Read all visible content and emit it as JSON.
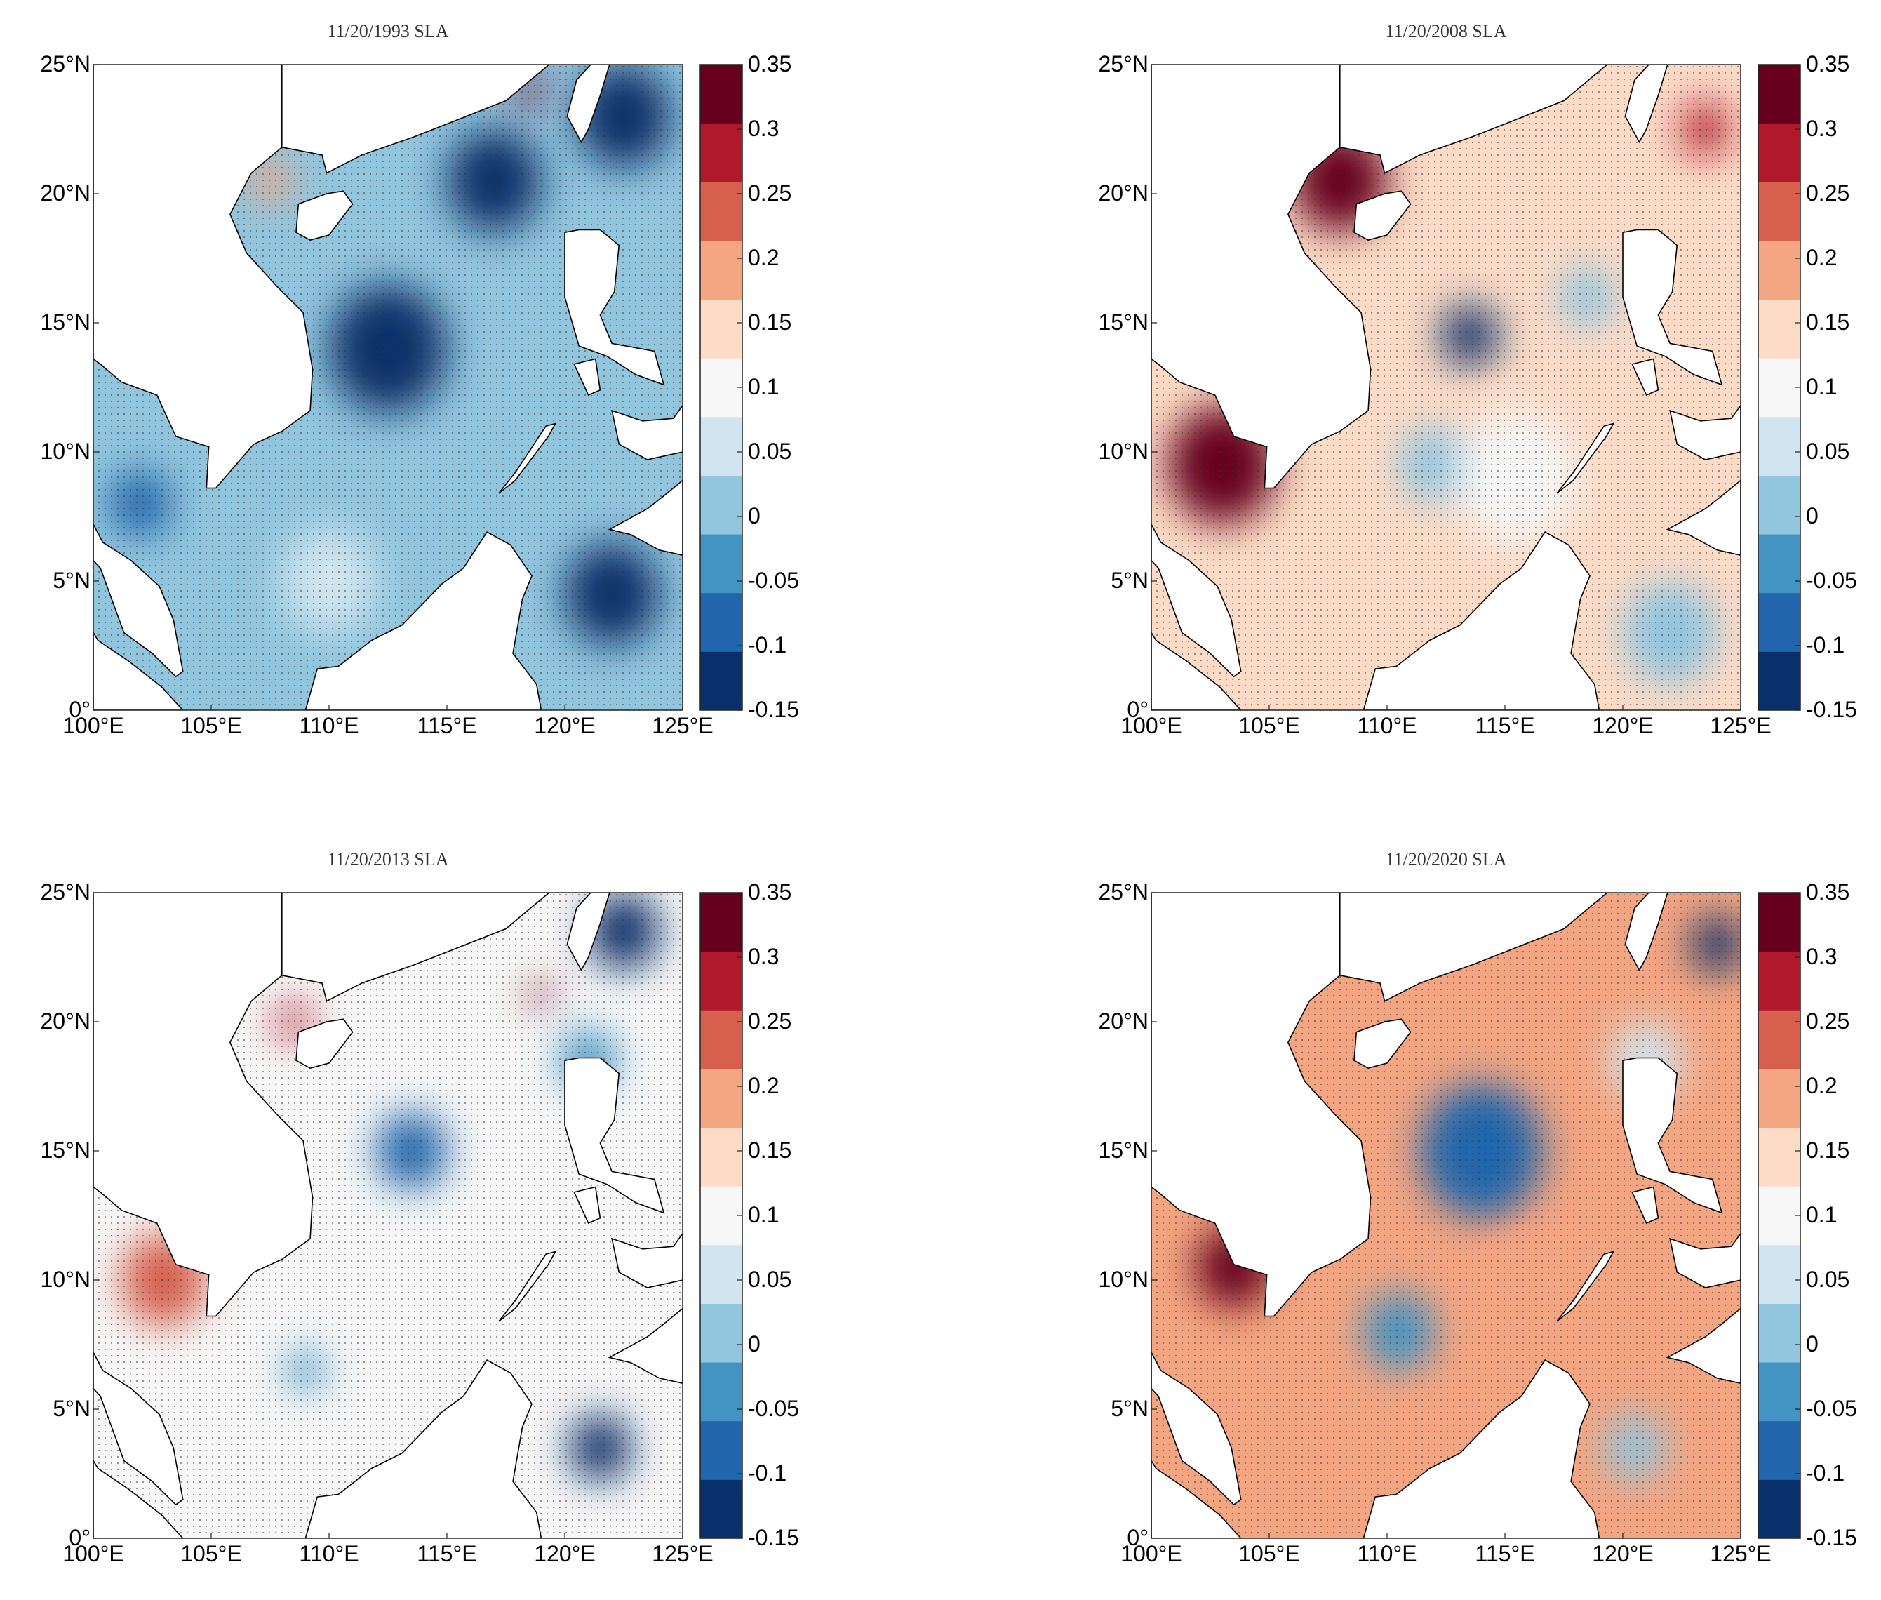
{
  "figure": {
    "colorbar": {
      "ticks": [
        "0.35",
        "0.3",
        "0.25",
        "0.2",
        "0.15",
        "0.1",
        "0.05",
        "0",
        "-0.05",
        "-0.1",
        "-0.15"
      ],
      "range": [
        -0.15,
        0.35
      ],
      "colors": [
        "#08306b",
        "#2166ac",
        "#4393c3",
        "#92c5de",
        "#d1e5f0",
        "#f7f7f7",
        "#fddbc7",
        "#f4a582",
        "#d6604d",
        "#b2182b",
        "#67001f"
      ]
    },
    "x_ticks": [
      "100°E",
      "105°E",
      "110°E",
      "115°E",
      "120°E",
      "125°E"
    ],
    "y_ticks": [
      "25°N",
      "20°N",
      "15°N",
      "10°N",
      "5°N",
      "0°"
    ],
    "land_color": "#ffffff",
    "coast_color": "#000000"
  },
  "panels": [
    {
      "title": "11/20/1993  SLA",
      "background_value": 0.0,
      "anomalies": [
        {
          "lon": 112.5,
          "lat": 14.0,
          "v": -0.13,
          "r": 2.5
        },
        {
          "lon": 117.0,
          "lat": 20.5,
          "v": -0.12,
          "r": 2.0
        },
        {
          "lon": 122.5,
          "lat": 23.0,
          "v": -0.14,
          "r": 2.0
        },
        {
          "lon": 118.5,
          "lat": 24.0,
          "v": 0.33,
          "r": 0.6
        },
        {
          "lon": 107.5,
          "lat": 20.5,
          "v": 0.18,
          "r": 0.9
        },
        {
          "lon": 102.0,
          "lat": 8.0,
          "v": -0.06,
          "r": 1.3
        },
        {
          "lon": 122.0,
          "lat": 4.5,
          "v": -0.12,
          "r": 2.0
        },
        {
          "lon": 110.0,
          "lat": 5.0,
          "v": 0.05,
          "r": 2.0
        }
      ]
    },
    {
      "title": "11/20/2008  SLA",
      "background_value": 0.16,
      "anomalies": [
        {
          "lon": 113.5,
          "lat": 14.5,
          "v": -0.14,
          "r": 1.2
        },
        {
          "lon": 112.0,
          "lat": 9.5,
          "v": 0.02,
          "r": 1.5
        },
        {
          "lon": 118.5,
          "lat": 16.0,
          "v": 0.02,
          "r": 1.2
        },
        {
          "lon": 103.0,
          "lat": 9.5,
          "v": 0.32,
          "r": 2.3
        },
        {
          "lon": 108.0,
          "lat": 20.5,
          "v": 0.31,
          "r": 2.0
        },
        {
          "lon": 123.5,
          "lat": 22.5,
          "v": 0.3,
          "r": 1.0
        },
        {
          "lon": 122.0,
          "lat": 3.0,
          "v": 0.02,
          "r": 2.0
        },
        {
          "lon": 115.5,
          "lat": 9.0,
          "v": 0.1,
          "r": 2.5
        }
      ]
    },
    {
      "title": "11/20/2013  SLA",
      "background_value": 0.09,
      "anomalies": [
        {
          "lon": 113.5,
          "lat": 15.0,
          "v": -0.1,
          "r": 1.5
        },
        {
          "lon": 122.5,
          "lat": 23.5,
          "v": -0.13,
          "r": 1.5
        },
        {
          "lon": 119.0,
          "lat": 21.0,
          "v": 0.31,
          "r": 0.5
        },
        {
          "lon": 108.5,
          "lat": 20.0,
          "v": 0.28,
          "r": 0.7
        },
        {
          "lon": 103.0,
          "lat": 10.0,
          "v": 0.24,
          "r": 1.8
        },
        {
          "lon": 121.5,
          "lat": 3.5,
          "v": -0.12,
          "r": 1.3
        },
        {
          "lon": 109.0,
          "lat": 6.5,
          "v": -0.05,
          "r": 0.8
        },
        {
          "lon": 121.0,
          "lat": 18.5,
          "v": -0.03,
          "r": 1.2
        }
      ]
    },
    {
      "title": "11/20/2020  SLA",
      "background_value": 0.2,
      "anomalies": [
        {
          "lon": 114.0,
          "lat": 15.0,
          "v": -0.1,
          "r": 2.6
        },
        {
          "lon": 110.5,
          "lat": 8.0,
          "v": -0.02,
          "r": 1.5
        },
        {
          "lon": 124.0,
          "lat": 23.0,
          "v": -0.14,
          "r": 1.1
        },
        {
          "lon": 121.0,
          "lat": 18.5,
          "v": 0.06,
          "r": 1.5
        },
        {
          "lon": 103.5,
          "lat": 10.5,
          "v": 0.32,
          "r": 1.6
        },
        {
          "lon": 120.5,
          "lat": 3.5,
          "v": 0.03,
          "r": 1.3
        },
        {
          "lon": 116.5,
          "lat": 9.0,
          "v": 0.18,
          "r": 2.0
        }
      ]
    }
  ]
}
